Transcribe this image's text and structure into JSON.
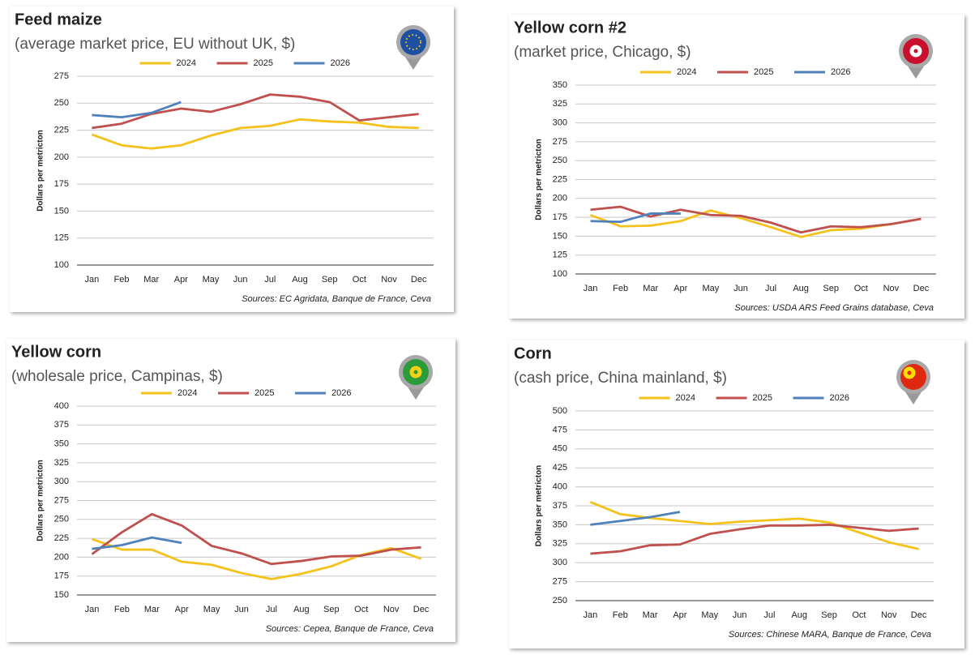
{
  "chart_data": [
    {
      "type": "line",
      "title": "Feed maize",
      "subtitle": "(average market price, EU without UK, $)",
      "y_label": "Dollars per metricton",
      "source": "Sources: EC Agridata, Banque de France, Ceva",
      "categories": [
        "Jan",
        "Feb",
        "Mar",
        "Apr",
        "May",
        "Jun",
        "Jul",
        "Aug",
        "Sep",
        "Oct",
        "Nov",
        "Dec"
      ],
      "ylim": [
        100,
        275
      ],
      "yticks": [
        100,
        125,
        150,
        175,
        200,
        225,
        250,
        275
      ],
      "grid": true,
      "series": [
        {
          "name": "2024",
          "color": "#f5c21b",
          "values": [
            221,
            211,
            208,
            211,
            220,
            227,
            229,
            235,
            233,
            232,
            228,
            227
          ]
        },
        {
          "name": "2025",
          "color": "#c0504d",
          "values": [
            227,
            231,
            240,
            245,
            242,
            249,
            258,
            256,
            251,
            234,
            237,
            240
          ]
        },
        {
          "name": "2026",
          "color": "#4f81bd",
          "values": [
            239,
            237,
            241,
            251,
            null,
            null,
            null,
            null,
            null,
            null,
            null,
            null
          ]
        }
      ]
    },
    {
      "type": "line",
      "title": "Yellow corn #2",
      "subtitle": "(market price, Chicago, $)",
      "y_label": "Dollars per metricton",
      "source": "Sources: USDA ARS Feed Grains database, Ceva",
      "categories": [
        "Jan",
        "Feb",
        "Mar",
        "Apr",
        "May",
        "Jun",
        "Jul",
        "Aug",
        "Sep",
        "Oct",
        "Nov",
        "Dec"
      ],
      "ylim": [
        100,
        350
      ],
      "yticks": [
        100,
        125,
        150,
        175,
        200,
        225,
        250,
        275,
        300,
        325,
        350
      ],
      "grid": true,
      "series": [
        {
          "name": "2024",
          "color": "#f5c21b",
          "values": [
            178,
            163,
            164,
            170,
            184,
            174,
            162,
            149,
            158,
            160,
            166,
            173
          ]
        },
        {
          "name": "2025",
          "color": "#c0504d",
          "values": [
            185,
            189,
            176,
            185,
            178,
            177,
            168,
            155,
            163,
            162,
            166,
            173
          ]
        },
        {
          "name": "2026",
          "color": "#4f81bd",
          "values": [
            170,
            169,
            180,
            180,
            null,
            null,
            null,
            null,
            null,
            null,
            null,
            null
          ]
        }
      ]
    },
    {
      "type": "line",
      "title": "Yellow corn",
      "subtitle": "(wholesale price, Campinas, $)",
      "y_label": "Dollars per metricton",
      "source": "Sources: Cepea, Banque de France, Ceva",
      "categories": [
        "Jan",
        "Feb",
        "Mar",
        "Apr",
        "May",
        "Jun",
        "Jul",
        "Aug",
        "Sep",
        "Oct",
        "Nov",
        "Dec"
      ],
      "ylim": [
        150,
        400
      ],
      "yticks": [
        150,
        175,
        200,
        225,
        250,
        275,
        300,
        325,
        350,
        375,
        400
      ],
      "grid": true,
      "series": [
        {
          "name": "2024",
          "color": "#f5c21b",
          "values": [
            224,
            210,
            210,
            194,
            190,
            179,
            171,
            178,
            188,
            203,
            212,
            198
          ]
        },
        {
          "name": "2025",
          "color": "#c0504d",
          "values": [
            204,
            233,
            257,
            242,
            215,
            205,
            191,
            195,
            201,
            202,
            210,
            213
          ]
        },
        {
          "name": "2026",
          "color": "#4f81bd",
          "values": [
            211,
            216,
            226,
            219,
            null,
            null,
            null,
            null,
            null,
            null,
            null,
            null
          ]
        }
      ]
    },
    {
      "type": "line",
      "title": "Corn",
      "subtitle": "(cash price, China mainland, $)",
      "y_label": "Dollars per metricton",
      "source": "Sources: Chinese MARA, Banque de France, Ceva",
      "categories": [
        "Jan",
        "Feb",
        "Mar",
        "Apr",
        "May",
        "Jun",
        "Jul",
        "Aug",
        "Sep",
        "Oct",
        "Nov",
        "Dec"
      ],
      "ylim": [
        250,
        500
      ],
      "yticks": [
        250,
        275,
        300,
        325,
        350,
        375,
        400,
        425,
        450,
        475,
        500
      ],
      "grid": true,
      "series": [
        {
          "name": "2024",
          "color": "#f5c21b",
          "values": [
            380,
            364,
            359,
            355,
            351,
            354,
            356,
            358,
            353,
            340,
            327,
            318
          ]
        },
        {
          "name": "2025",
          "color": "#c0504d",
          "values": [
            312,
            315,
            323,
            324,
            338,
            344,
            349,
            349,
            350,
            346,
            342,
            345
          ]
        },
        {
          "name": "2026",
          "color": "#4f81bd",
          "values": [
            350,
            355,
            360,
            367,
            null,
            null,
            null,
            null,
            null,
            null,
            null,
            null
          ]
        }
      ]
    }
  ]
}
